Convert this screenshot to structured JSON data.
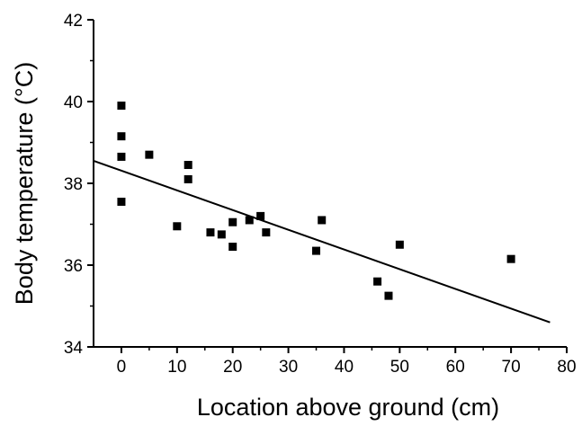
{
  "chart_data": {
    "type": "scatter",
    "title": "",
    "xlabel": "Location above ground (cm)",
    "ylabel": "Body temperature (°C)",
    "xlim": [
      -5,
      80
    ],
    "ylim": [
      34,
      42
    ],
    "x_ticks": [
      "0",
      "10",
      "20",
      "30",
      "40",
      "50",
      "60",
      "70",
      "80"
    ],
    "y_ticks": [
      "34",
      "36",
      "38",
      "40",
      "42"
    ],
    "grid": false,
    "legend": "none",
    "marker_color": "#000000",
    "series": [
      {
        "points": [
          {
            "x": 0,
            "y": 39.9
          },
          {
            "x": 0,
            "y": 39.15
          },
          {
            "x": 0,
            "y": 38.65
          },
          {
            "x": 0,
            "y": 37.55
          },
          {
            "x": 5,
            "y": 38.7
          },
          {
            "x": 10,
            "y": 36.95
          },
          {
            "x": 12,
            "y": 38.45
          },
          {
            "x": 12,
            "y": 38.1
          },
          {
            "x": 16,
            "y": 36.8
          },
          {
            "x": 18,
            "y": 36.75
          },
          {
            "x": 20,
            "y": 37.05
          },
          {
            "x": 20,
            "y": 36.45
          },
          {
            "x": 23,
            "y": 37.1
          },
          {
            "x": 25,
            "y": 37.2
          },
          {
            "x": 26,
            "y": 36.8
          },
          {
            "x": 35,
            "y": 36.35
          },
          {
            "x": 36,
            "y": 37.1
          },
          {
            "x": 46,
            "y": 35.6
          },
          {
            "x": 48,
            "y": 35.25
          },
          {
            "x": 50,
            "y": 36.5
          },
          {
            "x": 70,
            "y": 36.15
          }
        ]
      }
    ],
    "trendline": {
      "x": [
        -5,
        77
      ],
      "y": [
        38.55,
        34.6
      ]
    }
  }
}
